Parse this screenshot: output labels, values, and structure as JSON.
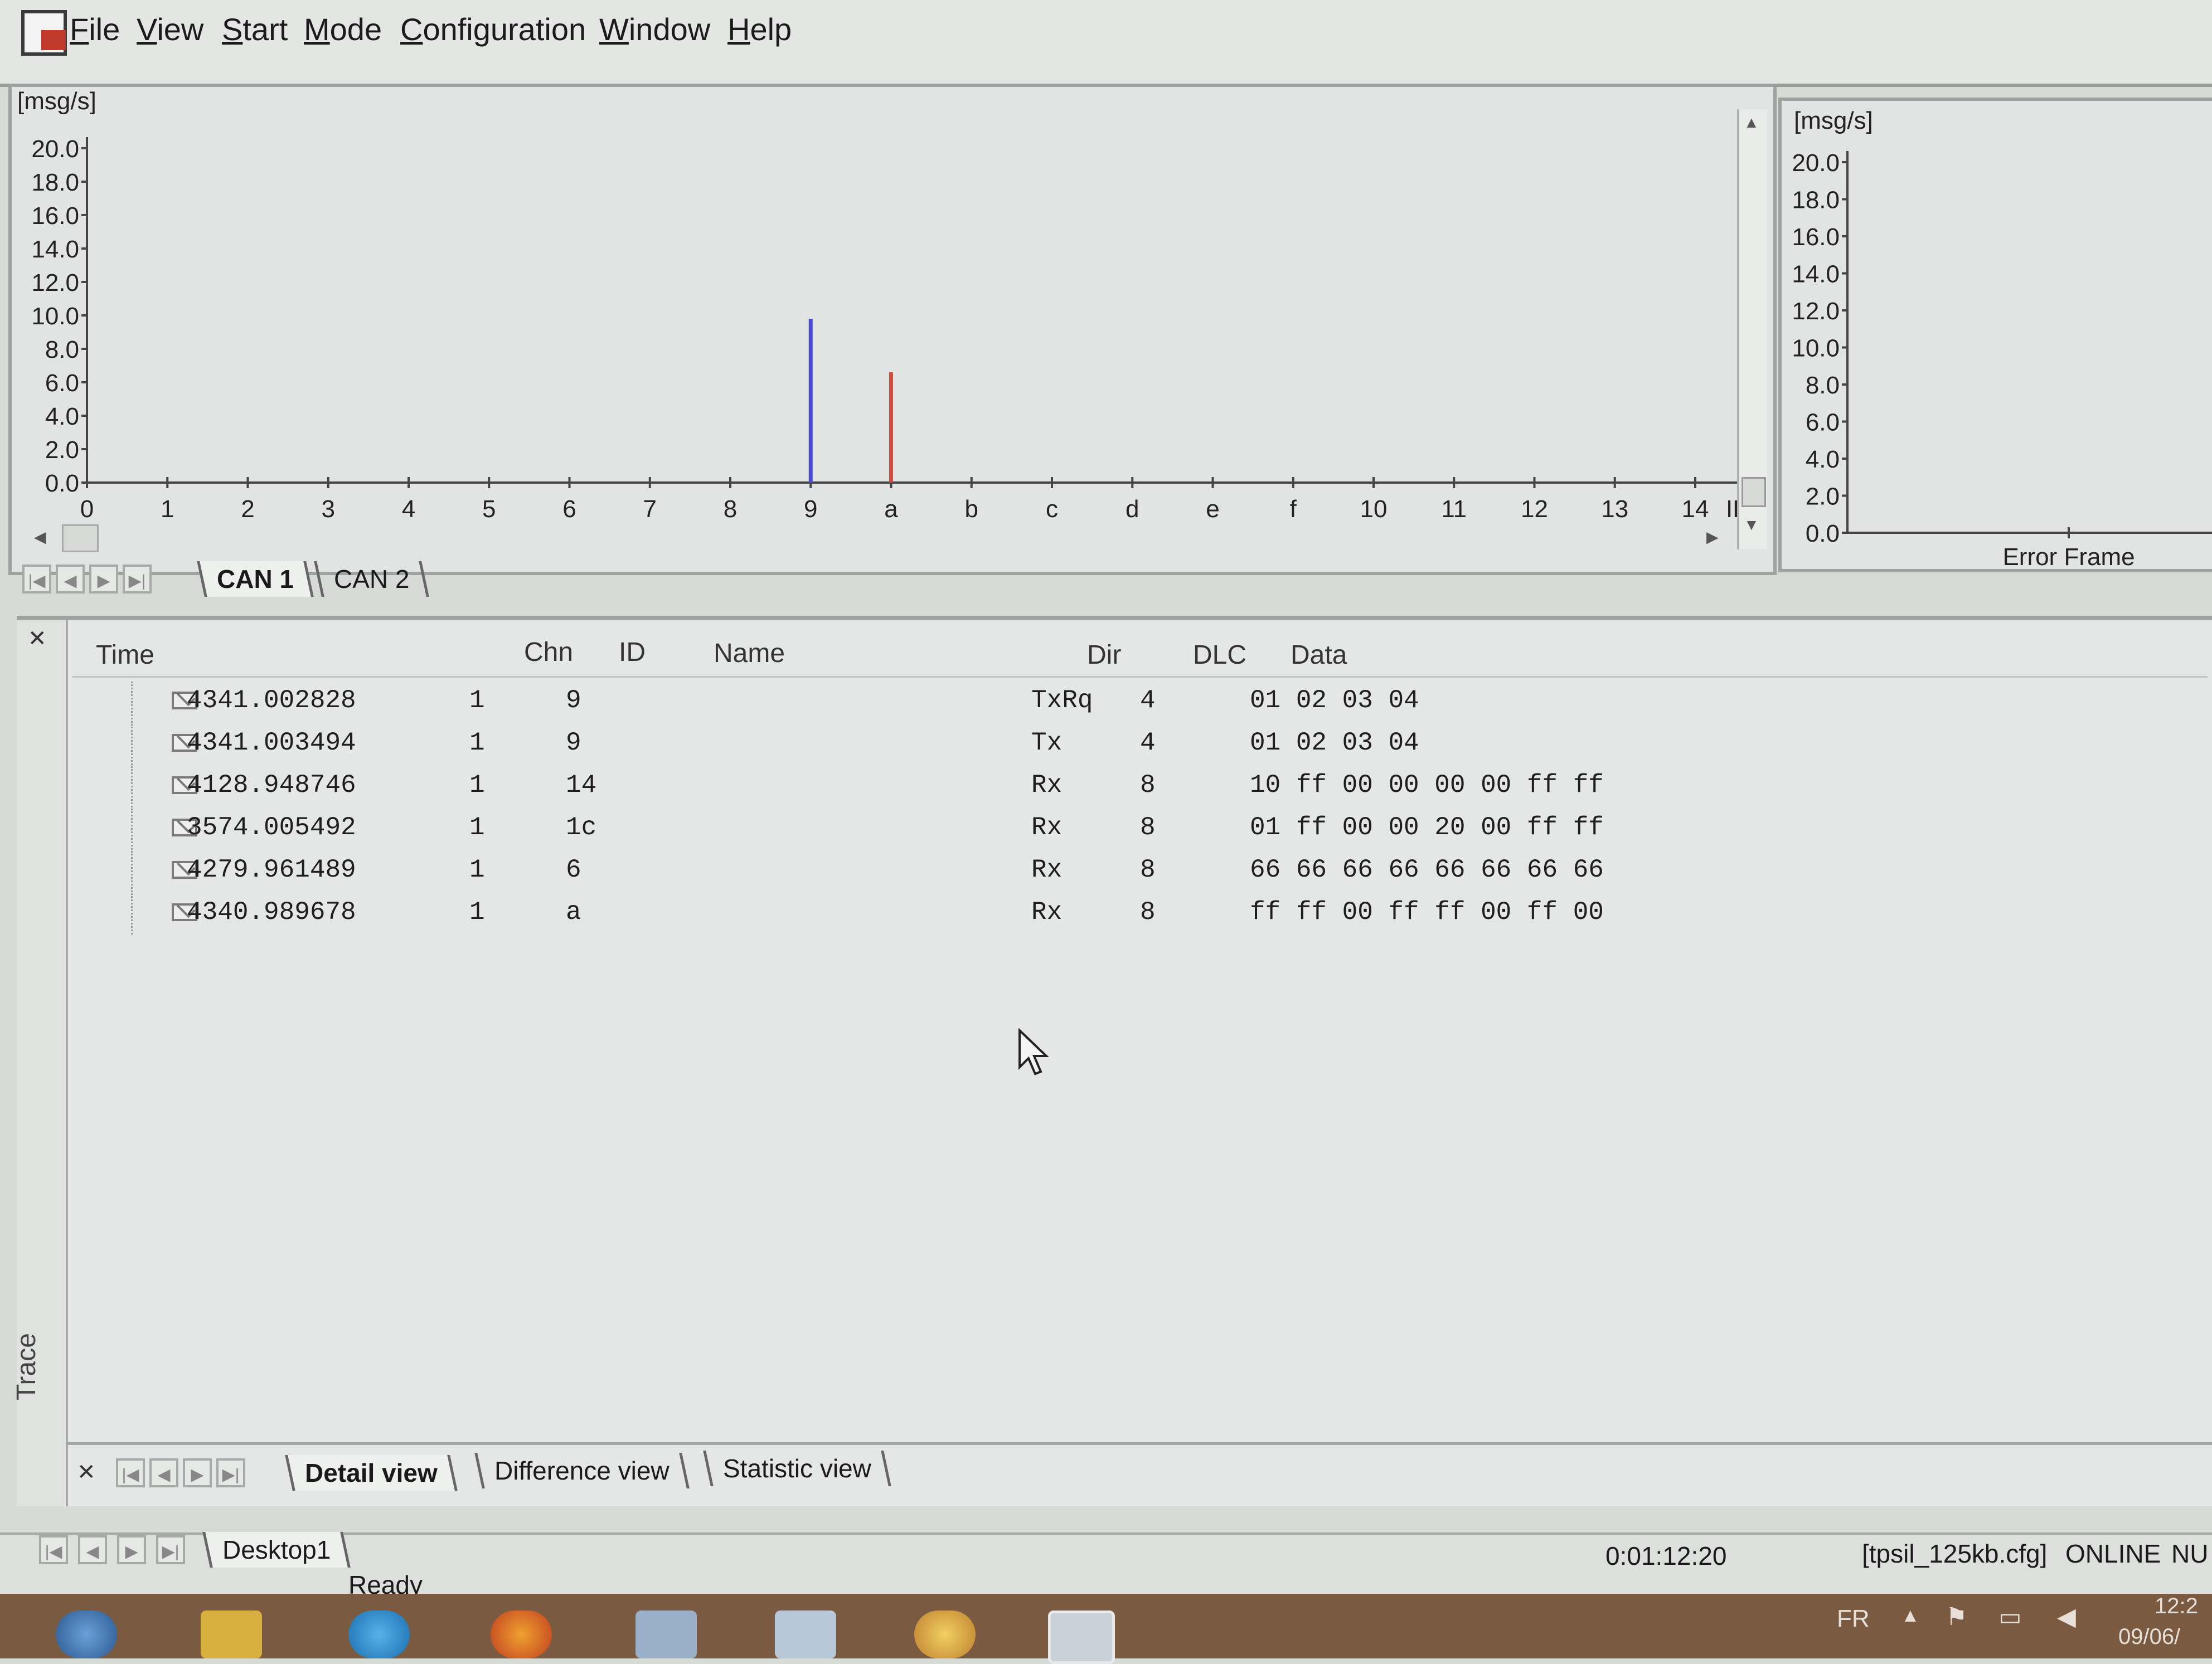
{
  "menu": {
    "items": [
      "File",
      "View",
      "Start",
      "Mode",
      "Configuration",
      "Window",
      "Help"
    ]
  },
  "chart_main": {
    "chart_data": {
      "type": "bar",
      "ylabel": "[msg/s]",
      "xlabel": "ID",
      "categories": [
        "0",
        "1",
        "2",
        "3",
        "4",
        "5",
        "6",
        "7",
        "8",
        "9",
        "a",
        "b",
        "c",
        "d",
        "e",
        "f",
        "10",
        "11",
        "12",
        "13",
        "14"
      ],
      "yticks": [
        "0.0",
        "2.0",
        "4.0",
        "6.0",
        "8.0",
        "10.0",
        "12.0",
        "14.0",
        "16.0",
        "18.0",
        "20.0"
      ],
      "ylim": [
        0,
        20
      ],
      "series": [
        {
          "category": "9",
          "value": 9.8,
          "color": "#4a4ad8"
        },
        {
          "category": "a",
          "value": 6.6,
          "color": "#d84a3a"
        }
      ]
    }
  },
  "chart_error": {
    "chart_data": {
      "type": "bar",
      "ylabel": "[msg/s]",
      "xlabel": "Error Frame",
      "yticks": [
        "0.0",
        "2.0",
        "4.0",
        "6.0",
        "8.0",
        "10.0",
        "12.0",
        "14.0",
        "16.0",
        "18.0",
        "20.0"
      ],
      "ylim": [
        0,
        20
      ]
    }
  },
  "chart_tabs": [
    "CAN 1",
    "CAN 2"
  ],
  "trace": {
    "headers": {
      "time": "Time",
      "chn": "Chn",
      "id": "ID",
      "name": "Name",
      "dir": "Dir",
      "dlc": "DLC",
      "data": "Data"
    },
    "rows": [
      {
        "time": "4341.002828",
        "chn": "1",
        "id": "9",
        "name": "",
        "dir": "TxRq",
        "dlc": "4",
        "data": "01 02 03 04"
      },
      {
        "time": "4341.003494",
        "chn": "1",
        "id": "9",
        "name": "",
        "dir": "Tx",
        "dlc": "4",
        "data": "01 02 03 04"
      },
      {
        "time": "4128.948746",
        "chn": "1",
        "id": "14",
        "name": "",
        "dir": "Rx",
        "dlc": "8",
        "data": "10 ff 00 00 00 00 ff ff"
      },
      {
        "time": "3574.005492",
        "chn": "1",
        "id": "1c",
        "name": "",
        "dir": "Rx",
        "dlc": "8",
        "data": "01 ff 00 00 20 00 ff ff"
      },
      {
        "time": "4279.961489",
        "chn": "1",
        "id": "6",
        "name": "",
        "dir": "Rx",
        "dlc": "8",
        "data": "66 66 66 66 66 66 66 66"
      },
      {
        "time": "4340.989678",
        "chn": "1",
        "id": "a",
        "name": "",
        "dir": "Rx",
        "dlc": "8",
        "data": "ff ff 00 ff ff 00 ff 00"
      }
    ],
    "side_label": "Trace",
    "view_tabs": [
      "Detail view",
      "Difference view",
      "Statistic view"
    ]
  },
  "desktop_tab": "Desktop1",
  "status": {
    "ready": "Ready",
    "elapsed": "0:01:12:20",
    "config": "[tpsil_125kb.cfg]",
    "online": "ONLINE",
    "num": "NU"
  },
  "taskbar": {
    "lang": "FR",
    "clock_time": "12:2",
    "clock_date": "09/06/"
  }
}
